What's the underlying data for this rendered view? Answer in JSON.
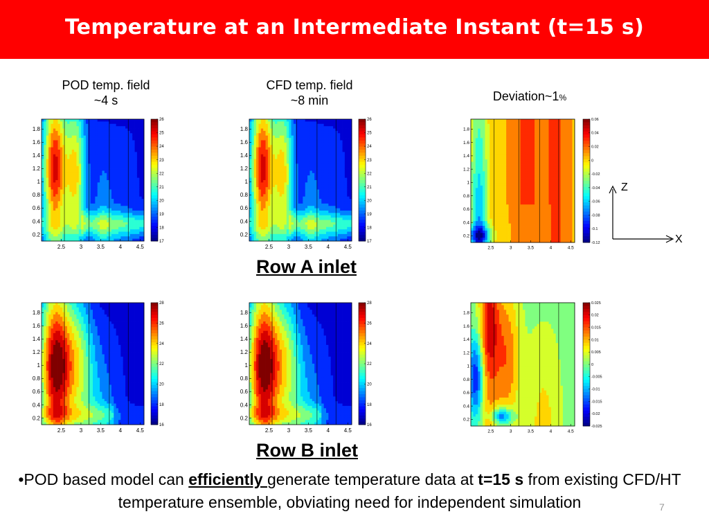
{
  "slide": {
    "title": "Temperature at an Intermediate Instant (t=15 s)",
    "page_number": "7",
    "row_a_label": "Row A inlet",
    "row_b_label": "Row B inlet",
    "pod_title_line1": "POD temp. field",
    "pod_title_line2": "~4 s",
    "cfd_title_line1": "CFD temp. field",
    "cfd_title_line2": "~8 min",
    "dev_title_main": "Deviation~1",
    "dev_title_pct": "%",
    "axis_z": "Z",
    "axis_x": "X",
    "bullet": {
      "prefix": "•POD based model can ",
      "emph": "efficiently ",
      "mid": "generate temperature data at ",
      "bold_time": "t=15 s",
      "rest": " from existing CFD/HT temperature ensemble, obviating need for independent simulation"
    }
  },
  "chart_data": [
    {
      "type": "heatmap",
      "name": "row-a-pod",
      "x_ticks": [
        "2.5",
        "3",
        "3.5",
        "4",
        "4.5"
      ],
      "y_ticks": [
        "1.8",
        "1.6",
        "1.4",
        "1.2",
        "1",
        "0.8",
        "0.6",
        "0.4",
        "0.2"
      ],
      "xlim": [
        2.0,
        4.6
      ],
      "ylim": [
        0.1,
        1.95
      ],
      "colorbar_ticks": [
        "26",
        "25",
        "24",
        "23",
        "22",
        "21",
        "20",
        "19",
        "18",
        "17"
      ],
      "colorbar_range": [
        17,
        26
      ],
      "pattern": "rowA"
    },
    {
      "type": "heatmap",
      "name": "row-a-cfd",
      "x_ticks": [
        "2.5",
        "3",
        "3.5",
        "4",
        "4.5"
      ],
      "y_ticks": [
        "1.8",
        "1.6",
        "1.4",
        "1.2",
        "1",
        "0.8",
        "0.6",
        "0.4",
        "0.2"
      ],
      "xlim": [
        2.0,
        4.6
      ],
      "ylim": [
        0.1,
        1.95
      ],
      "colorbar_ticks": [
        "26",
        "25",
        "24",
        "23",
        "22",
        "21",
        "20",
        "19",
        "18",
        "17"
      ],
      "colorbar_range": [
        17,
        26
      ],
      "pattern": "rowA"
    },
    {
      "type": "heatmap",
      "name": "row-a-deviation",
      "x_ticks": [
        "2.5",
        "3",
        "3.5",
        "4",
        "4.5"
      ],
      "y_ticks": [
        "1.8",
        "1.6",
        "1.4",
        "1.2",
        "1",
        "0.8",
        "0.6",
        "0.4",
        "0.2"
      ],
      "xlim": [
        2.0,
        4.6
      ],
      "ylim": [
        0.1,
        1.95
      ],
      "colorbar_ticks": [
        "0.06",
        "0.04",
        "0.02",
        "0",
        "-0.02",
        "-0.04",
        "-0.06",
        "-0.08",
        "-0.1",
        "-0.12"
      ],
      "colorbar_range": [
        -0.12,
        0.06
      ],
      "pattern": "devA"
    },
    {
      "type": "heatmap",
      "name": "row-b-pod",
      "x_ticks": [
        "2.5",
        "3",
        "3.5",
        "4",
        "4.5"
      ],
      "y_ticks": [
        "1.8",
        "1.6",
        "1.4",
        "1.2",
        "1",
        "0.8",
        "0.6",
        "0.4",
        "0.2"
      ],
      "xlim": [
        2.0,
        4.6
      ],
      "ylim": [
        0.1,
        1.95
      ],
      "colorbar_ticks": [
        "28",
        "26",
        "24",
        "22",
        "20",
        "18",
        "16"
      ],
      "colorbar_range": [
        16,
        28
      ],
      "pattern": "rowB"
    },
    {
      "type": "heatmap",
      "name": "row-b-cfd",
      "x_ticks": [
        "2.5",
        "3",
        "3.5",
        "4",
        "4.5"
      ],
      "y_ticks": [
        "1.8",
        "1.6",
        "1.4",
        "1.2",
        "1",
        "0.8",
        "0.6",
        "0.4",
        "0.2"
      ],
      "xlim": [
        2.0,
        4.6
      ],
      "ylim": [
        0.1,
        1.95
      ],
      "colorbar_ticks": [
        "28",
        "26",
        "24",
        "22",
        "20",
        "18",
        "16"
      ],
      "colorbar_range": [
        16,
        28
      ],
      "pattern": "rowB"
    },
    {
      "type": "heatmap",
      "name": "row-b-deviation",
      "x_ticks": [
        "2.5",
        "3",
        "3.5",
        "4",
        "4.5"
      ],
      "y_ticks": [
        "1.8",
        "1.6",
        "1.4",
        "1.2",
        "1",
        "0.8",
        "0.6",
        "0.4",
        "0.2"
      ],
      "xlim": [
        2.0,
        4.6
      ],
      "ylim": [
        0.1,
        1.95
      ],
      "colorbar_ticks": [
        "0.025",
        "0.02",
        "0.015",
        "0.01",
        "0.005",
        "0",
        "-0.005",
        "-0.01",
        "-0.015",
        "-0.02",
        "-0.025"
      ],
      "colorbar_range": [
        -0.025,
        0.025
      ],
      "pattern": "devB"
    }
  ]
}
